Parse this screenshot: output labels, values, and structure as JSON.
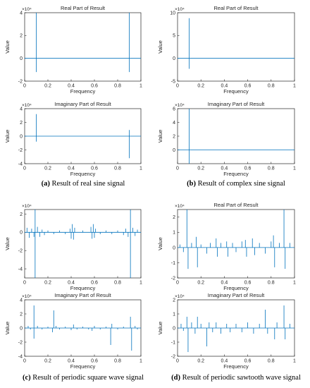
{
  "figure": {
    "captions": [
      {
        "letter": "(a)",
        "text": "Result of real sine signal"
      },
      {
        "letter": "(b)",
        "text": "Result of complex sine signal"
      },
      {
        "letter": "(c)",
        "text": "Result of periodic square wave signal"
      },
      {
        "letter": "(d)",
        "text": "Result of periodic sawtooth wave signal"
      }
    ],
    "colors": {
      "line": "#0072BD",
      "axis": "#262626",
      "background": "#ffffff"
    }
  },
  "chart_data": [
    {
      "type": "line",
      "panel": "a",
      "row": "top",
      "title": "Real Part of  Result",
      "xlabel": "Frequency",
      "ylabel": "Value",
      "exponent": "×10⁴",
      "xlim": [
        0,
        1
      ],
      "ylim": [
        -2,
        4
      ],
      "xticks": [
        0,
        0.2,
        0.4,
        0.6,
        0.8,
        1
      ],
      "yticks": [
        -2,
        0,
        2,
        4
      ],
      "baseline": 0,
      "spikes": [
        {
          "x": 0.1,
          "y": 4.5
        },
        {
          "x": 0.1,
          "y": -1.2
        },
        {
          "x": 0.9,
          "y": 4.5
        },
        {
          "x": 0.9,
          "y": -1.2
        }
      ]
    },
    {
      "type": "line",
      "panel": "b",
      "row": "top",
      "title": "Real Part of  Result",
      "xlabel": "Frequency",
      "ylabel": "Value",
      "exponent": "×10⁴",
      "xlim": [
        0,
        1
      ],
      "ylim": [
        -5,
        10
      ],
      "xticks": [
        0,
        0.2,
        0.4,
        0.6,
        0.8,
        1
      ],
      "yticks": [
        -5,
        0,
        5,
        10
      ],
      "baseline": 0,
      "spikes": [
        {
          "x": 0.1,
          "y": 8.8
        },
        {
          "x": 0.1,
          "y": -2.3
        }
      ]
    },
    {
      "type": "line",
      "panel": "a",
      "row": "bottom",
      "title": "Imaginary Part of Result",
      "xlabel": "Frequency",
      "ylabel": "Value",
      "exponent": "×10⁴",
      "xlim": [
        0,
        1
      ],
      "ylim": [
        -4,
        4
      ],
      "xticks": [
        0,
        0.2,
        0.4,
        0.6,
        0.8,
        1
      ],
      "yticks": [
        -4,
        -2,
        0,
        2,
        4
      ],
      "baseline": 0,
      "spikes": [
        {
          "x": 0.1,
          "y": 3.2
        },
        {
          "x": 0.1,
          "y": -0.8
        },
        {
          "x": 0.9,
          "y": 0.9
        },
        {
          "x": 0.9,
          "y": -3.2
        }
      ]
    },
    {
      "type": "line",
      "panel": "b",
      "row": "bottom",
      "title": "Imaginary Part of Result",
      "xlabel": "Frequency",
      "ylabel": "Value",
      "exponent": "×10⁴",
      "xlim": [
        0,
        1
      ],
      "ylim": [
        -2,
        6
      ],
      "xticks": [
        0,
        0.2,
        0.4,
        0.6,
        0.8,
        1
      ],
      "yticks": [
        0,
        2,
        4,
        6
      ],
      "baseline": 0,
      "spikes": [
        {
          "x": 0.1,
          "y": 6.5
        },
        {
          "x": 0.1,
          "y": -2
        }
      ]
    },
    {
      "type": "line",
      "panel": "c",
      "row": "top",
      "title": "",
      "xlabel": "Frequency",
      "ylabel": "Value",
      "exponent": "×10⁴",
      "xlim": [
        0,
        1
      ],
      "ylim": [
        -5,
        2.5
      ],
      "xticks": [
        0,
        0.2,
        0.4,
        0.6,
        0.8,
        1
      ],
      "yticks": [
        -4,
        -2,
        0,
        2
      ],
      "baseline": 0,
      "spikes": [
        {
          "x": 0.02,
          "y": 0.5
        },
        {
          "x": 0.04,
          "y": -0.6
        },
        {
          "x": 0.06,
          "y": 0.4
        },
        {
          "x": 0.08,
          "y": -0.5
        },
        {
          "x": 0.09,
          "y": 2.6
        },
        {
          "x": 0.09,
          "y": -5.0
        },
        {
          "x": 0.11,
          "y": 0.6
        },
        {
          "x": 0.13,
          "y": -0.5
        },
        {
          "x": 0.15,
          "y": 0.3
        },
        {
          "x": 0.17,
          "y": -0.3
        },
        {
          "x": 0.2,
          "y": 0.2
        },
        {
          "x": 0.25,
          "y": -0.2
        },
        {
          "x": 0.3,
          "y": 0.2
        },
        {
          "x": 0.35,
          "y": -0.2
        },
        {
          "x": 0.39,
          "y": 0.4
        },
        {
          "x": 0.4,
          "y": -0.7
        },
        {
          "x": 0.41,
          "y": 0.9
        },
        {
          "x": 0.42,
          "y": -0.8
        },
        {
          "x": 0.43,
          "y": 0.5
        },
        {
          "x": 0.5,
          "y": 0.2
        },
        {
          "x": 0.57,
          "y": 0.6
        },
        {
          "x": 0.58,
          "y": -0.7
        },
        {
          "x": 0.59,
          "y": 0.9
        },
        {
          "x": 0.6,
          "y": -0.6
        },
        {
          "x": 0.61,
          "y": 0.4
        },
        {
          "x": 0.65,
          "y": -0.2
        },
        {
          "x": 0.7,
          "y": 0.2
        },
        {
          "x": 0.75,
          "y": -0.2
        },
        {
          "x": 0.8,
          "y": 0.2
        },
        {
          "x": 0.85,
          "y": -0.3
        },
        {
          "x": 0.87,
          "y": 0.4
        },
        {
          "x": 0.89,
          "y": -0.5
        },
        {
          "x": 0.91,
          "y": 2.6
        },
        {
          "x": 0.91,
          "y": -5.0
        },
        {
          "x": 0.93,
          "y": 0.5
        },
        {
          "x": 0.95,
          "y": -0.4
        },
        {
          "x": 0.97,
          "y": 0.3
        }
      ]
    },
    {
      "type": "line",
      "panel": "d",
      "row": "top",
      "title": "Real Part of  Result",
      "xlabel": "Frequency",
      "ylabel": "Value",
      "exponent": "×10⁴",
      "xlim": [
        0,
        1
      ],
      "ylim": [
        -2,
        2.5
      ],
      "xticks": [
        0,
        0.2,
        0.4,
        0.6,
        0.8,
        1
      ],
      "yticks": [
        -2,
        -1,
        0,
        1,
        2
      ],
      "baseline": 0,
      "spikes": [
        {
          "x": 0.02,
          "y": 0.2
        },
        {
          "x": 0.05,
          "y": -0.3
        },
        {
          "x": 0.08,
          "y": 2.6
        },
        {
          "x": 0.09,
          "y": -1.4
        },
        {
          "x": 0.12,
          "y": 0.3
        },
        {
          "x": 0.16,
          "y": 0.7
        },
        {
          "x": 0.17,
          "y": -1.3
        },
        {
          "x": 0.2,
          "y": 0.2
        },
        {
          "x": 0.25,
          "y": -0.4
        },
        {
          "x": 0.28,
          "y": 0.3
        },
        {
          "x": 0.33,
          "y": 0.6
        },
        {
          "x": 0.34,
          "y": -0.6
        },
        {
          "x": 0.37,
          "y": 0.3
        },
        {
          "x": 0.42,
          "y": 0.4
        },
        {
          "x": 0.43,
          "y": -0.6
        },
        {
          "x": 0.47,
          "y": 0.3
        },
        {
          "x": 0.5,
          "y": -0.3
        },
        {
          "x": 0.55,
          "y": 0.4
        },
        {
          "x": 0.58,
          "y": 0.5
        },
        {
          "x": 0.59,
          "y": -0.6
        },
        {
          "x": 0.64,
          "y": 0.6
        },
        {
          "x": 0.66,
          "y": -0.5
        },
        {
          "x": 0.7,
          "y": 0.3
        },
        {
          "x": 0.75,
          "y": -0.4
        },
        {
          "x": 0.8,
          "y": 0.4
        },
        {
          "x": 0.82,
          "y": 0.8
        },
        {
          "x": 0.83,
          "y": -1.3
        },
        {
          "x": 0.87,
          "y": 0.3
        },
        {
          "x": 0.91,
          "y": 2.6
        },
        {
          "x": 0.92,
          "y": -1.4
        },
        {
          "x": 0.96,
          "y": 0.3
        }
      ]
    },
    {
      "type": "line",
      "panel": "c",
      "row": "bottom",
      "title": "Imaginary Part of Result",
      "xlabel": "Frequency",
      "ylabel": "Value",
      "exponent": "×10⁴",
      "xlim": [
        0,
        1
      ],
      "ylim": [
        -4,
        4
      ],
      "xticks": [
        0,
        0.2,
        0.4,
        0.6,
        0.8,
        1
      ],
      "yticks": [
        -4,
        -2,
        0,
        2,
        4
      ],
      "baseline": 0,
      "spikes": [
        {
          "x": 0.03,
          "y": 0.3
        },
        {
          "x": 0.05,
          "y": -0.2
        },
        {
          "x": 0.08,
          "y": 3.2
        },
        {
          "x": 0.08,
          "y": -1.5
        },
        {
          "x": 0.11,
          "y": 0.3
        },
        {
          "x": 0.15,
          "y": -0.2
        },
        {
          "x": 0.2,
          "y": 0.2
        },
        {
          "x": 0.24,
          "y": -0.6
        },
        {
          "x": 0.25,
          "y": 2.5
        },
        {
          "x": 0.27,
          "y": 0.3
        },
        {
          "x": 0.3,
          "y": -0.2
        },
        {
          "x": 0.35,
          "y": 0.2
        },
        {
          "x": 0.4,
          "y": -0.3
        },
        {
          "x": 0.42,
          "y": 0.5
        },
        {
          "x": 0.45,
          "y": -0.2
        },
        {
          "x": 0.5,
          "y": 0.2
        },
        {
          "x": 0.55,
          "y": -0.2
        },
        {
          "x": 0.58,
          "y": -0.4
        },
        {
          "x": 0.6,
          "y": 0.3
        },
        {
          "x": 0.65,
          "y": -0.2
        },
        {
          "x": 0.7,
          "y": 0.2
        },
        {
          "x": 0.74,
          "y": -2.4
        },
        {
          "x": 0.75,
          "y": 0.6
        },
        {
          "x": 0.8,
          "y": -0.2
        },
        {
          "x": 0.85,
          "y": 0.2
        },
        {
          "x": 0.91,
          "y": 1.6
        },
        {
          "x": 0.92,
          "y": -3.2
        },
        {
          "x": 0.95,
          "y": 0.3
        },
        {
          "x": 0.97,
          "y": -0.2
        }
      ]
    },
    {
      "type": "line",
      "panel": "d",
      "row": "bottom",
      "title": "Imaginary Part of Result",
      "xlabel": "Frequency",
      "ylabel": "Value",
      "exponent": "×10⁴",
      "xlim": [
        0,
        1
      ],
      "ylim": [
        -2,
        2
      ],
      "xticks": [
        0,
        0.2,
        0.4,
        0.6,
        0.8,
        1
      ],
      "yticks": [
        -2,
        -1,
        0,
        1,
        2
      ],
      "baseline": 0,
      "spikes": [
        {
          "x": 0.03,
          "y": 0.3
        },
        {
          "x": 0.05,
          "y": -0.2
        },
        {
          "x": 0.08,
          "y": 0.8
        },
        {
          "x": 0.09,
          "y": -1.7
        },
        {
          "x": 0.12,
          "y": 0.4
        },
        {
          "x": 0.15,
          "y": -0.4
        },
        {
          "x": 0.17,
          "y": 0.8
        },
        {
          "x": 0.2,
          "y": 0.3
        },
        {
          "x": 0.25,
          "y": -1.3
        },
        {
          "x": 0.27,
          "y": 0.4
        },
        {
          "x": 0.3,
          "y": -0.3
        },
        {
          "x": 0.33,
          "y": 0.4
        },
        {
          "x": 0.37,
          "y": -0.4
        },
        {
          "x": 0.42,
          "y": 0.3
        },
        {
          "x": 0.45,
          "y": -0.3
        },
        {
          "x": 0.5,
          "y": 0.3
        },
        {
          "x": 0.55,
          "y": -0.3
        },
        {
          "x": 0.6,
          "y": 0.4
        },
        {
          "x": 0.65,
          "y": -0.4
        },
        {
          "x": 0.7,
          "y": 0.3
        },
        {
          "x": 0.75,
          "y": 1.3
        },
        {
          "x": 0.77,
          "y": -0.4
        },
        {
          "x": 0.83,
          "y": -0.8
        },
        {
          "x": 0.85,
          "y": 0.4
        },
        {
          "x": 0.91,
          "y": 1.6
        },
        {
          "x": 0.92,
          "y": -0.8
        },
        {
          "x": 0.96,
          "y": 0.3
        }
      ]
    }
  ]
}
